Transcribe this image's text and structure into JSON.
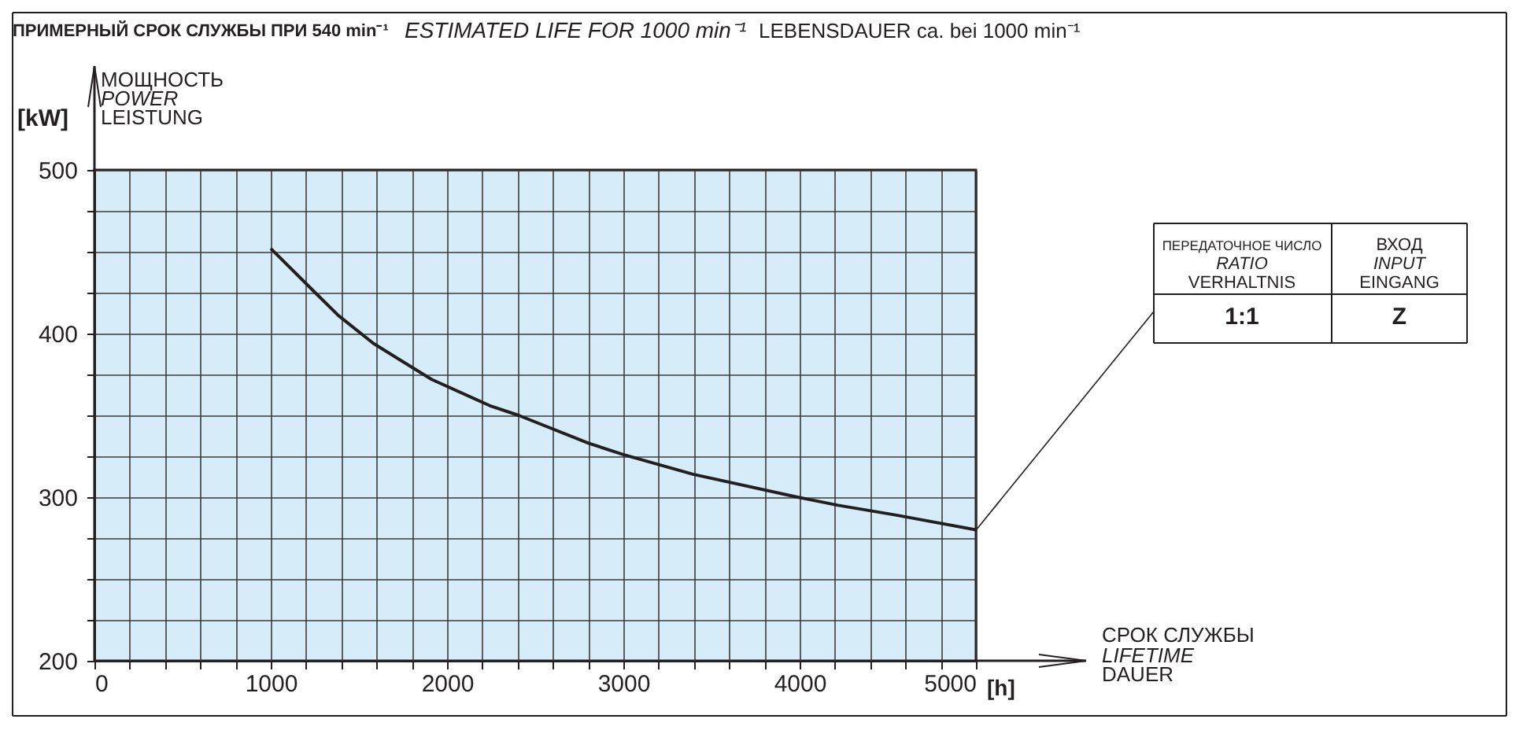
{
  "chart_data": {
    "type": "line",
    "title": "ПРИМЕРНЫЙ СРОК СЛУЖБЫ ПРИ 540 min⁻¹",
    "ylabel": "МОЩНОСТЬ",
    "annotations": [
      "ESTIMATED LIFE FOR 1000 min⁻¹",
      "LEBENSDAUER ca. bei 1000 min⁻¹",
      "[kW]",
      "[h]",
      "POWER",
      "LEISTUNG",
      "LIFETIME",
      "DAUER",
      "СРОК СЛУЖБЫ",
      "ПЕРЕДАТОЧНОЕ ЧИСЛО",
      "RATIO",
      "VERHALTNIS",
      "ВХОД",
      "INPUT",
      "EINGANG",
      "1:1",
      "Z"
    ],
    "x": [
      1000,
      1252,
      1384,
      1582,
      1912,
      2241,
      2406,
      2802,
      3000,
      3395,
      3988,
      4219,
      4549,
      5000
    ],
    "series": [
      {
        "color": "#231f20",
        "values": [
          452,
          425,
          411,
          394,
          372,
          356,
          350,
          333,
          326,
          314,
          300,
          295,
          289,
          280
        ]
      }
    ],
    "xlim": [
      0,
      5000
    ],
    "xticks": [
      0,
      {
        "value": 200,
        "label": null
      },
      {
        "value": 400,
        "label": null
      },
      {
        "value": 600,
        "label": null
      },
      {
        "value": 800,
        "label": null
      },
      1000,
      {
        "value": 1200,
        "label": null
      },
      {
        "value": 1400,
        "label": null
      },
      {
        "value": 1600,
        "label": null
      },
      {
        "value": 1800,
        "label": null
      },
      2000,
      {
        "value": 2200,
        "label": null
      },
      {
        "value": 2400,
        "label": null
      },
      {
        "value": 2600,
        "label": null
      },
      {
        "value": 2800,
        "label": null
      },
      3000,
      {
        "value": 3200,
        "label": null
      },
      {
        "value": 3400,
        "label": null
      },
      {
        "value": 3600,
        "label": null
      },
      {
        "value": 3800,
        "label": null
      },
      4000,
      {
        "value": 4200,
        "label": null
      },
      {
        "value": 4400,
        "label": null
      },
      {
        "value": 4600,
        "label": null
      },
      {
        "value": 4800,
        "label": null
      },
      5000
    ],
    "ylim": [
      200,
      500
    ],
    "yticks": [
      200,
      {
        "value": 225,
        "label": null
      },
      {
        "value": 250,
        "label": null
      },
      {
        "value": 275,
        "label": null
      },
      300,
      {
        "value": 325,
        "label": null
      },
      {
        "value": 350,
        "label": null
      },
      {
        "value": 375,
        "label": null
      },
      400,
      {
        "value": 425,
        "label": null
      },
      {
        "value": 450,
        "label": null
      },
      {
        "value": 475,
        "label": null
      },
      500
    ],
    "grid": true,
    "marker": "none",
    "line_style": "solid"
  }
}
